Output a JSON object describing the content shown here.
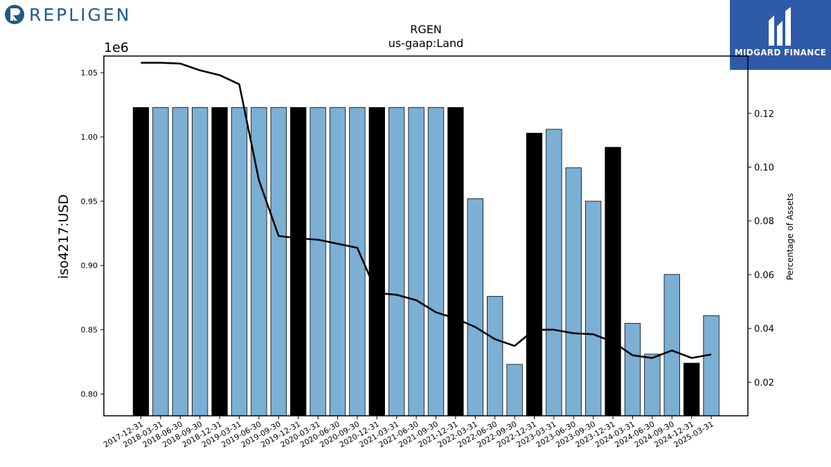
{
  "branding": {
    "company_logo_text": "REPLIGEN",
    "partner_logo_text": "MIDGARD FINANCE",
    "company_color": "#1f5a86",
    "partner_bg_color": "#2e5aa8"
  },
  "chart_data": {
    "type": "bar",
    "title": "RGEN",
    "subtitle": "us-gaap:Land",
    "ylabel": "iso4217:USD",
    "y2label": "Percentage of Assets",
    "y_scale_label": "1e6",
    "ylim": [
      0.783,
      1.063
    ],
    "y2lim": [
      0.0075,
      0.1413
    ],
    "yticks": [
      "0.80",
      "0.85",
      "0.90",
      "0.95",
      "1.00",
      "1.05"
    ],
    "y2ticks": [
      "0.02",
      "0.04",
      "0.06",
      "0.08",
      "0.10",
      "0.12"
    ],
    "categories": [
      "2017-12-31",
      "2018-03-31",
      "2018-06-30",
      "2018-09-30",
      "2018-12-31",
      "2019-03-31",
      "2019-06-30",
      "2019-09-30",
      "2019-12-31",
      "2020-03-31",
      "2020-06-30",
      "2020-09-30",
      "2020-12-31",
      "2021-03-31",
      "2021-06-30",
      "2021-09-30",
      "2021-12-31",
      "2022-03-31",
      "2022-06-30",
      "2022-09-30",
      "2022-12-31",
      "2023-03-31",
      "2023-06-30",
      "2023-09-30",
      "2023-12-31",
      "2024-03-31",
      "2024-06-30",
      "2024-09-30",
      "2024-12-31",
      "2025-03-31"
    ],
    "series": [
      {
        "kind": "bar",
        "axis": "left",
        "values": [
          1.023,
          1.023,
          1.023,
          1.023,
          1.023,
          1.023,
          1.023,
          1.023,
          1.023,
          1.023,
          1.023,
          1.023,
          1.023,
          1.023,
          1.023,
          1.023,
          1.023,
          0.952,
          0.876,
          0.823,
          1.003,
          1.006,
          0.976,
          0.95,
          0.992,
          0.855,
          0.831,
          0.893,
          0.824,
          0.861
        ],
        "annual_flags": [
          1,
          0,
          0,
          0,
          1,
          0,
          0,
          0,
          1,
          0,
          0,
          0,
          1,
          0,
          0,
          0,
          1,
          0,
          0,
          0,
          1,
          0,
          0,
          0,
          1,
          0,
          0,
          0,
          1,
          0
        ],
        "color_annual": "#000000",
        "color_quarterly": "#7bafd4"
      },
      {
        "kind": "line",
        "axis": "right",
        "values": [
          0.1388,
          0.1388,
          0.1385,
          0.136,
          0.1342,
          0.1308,
          0.0951,
          0.0744,
          0.0735,
          0.073,
          0.0715,
          0.07,
          0.0532,
          0.0525,
          0.0505,
          0.046,
          0.0437,
          0.0405,
          0.036,
          0.0335,
          0.0395,
          0.0395,
          0.0382,
          0.0378,
          0.035,
          0.03,
          0.029,
          0.0318,
          0.029,
          0.0303
        ],
        "color": "#000000"
      }
    ],
    "legend": "none",
    "grid": false
  }
}
